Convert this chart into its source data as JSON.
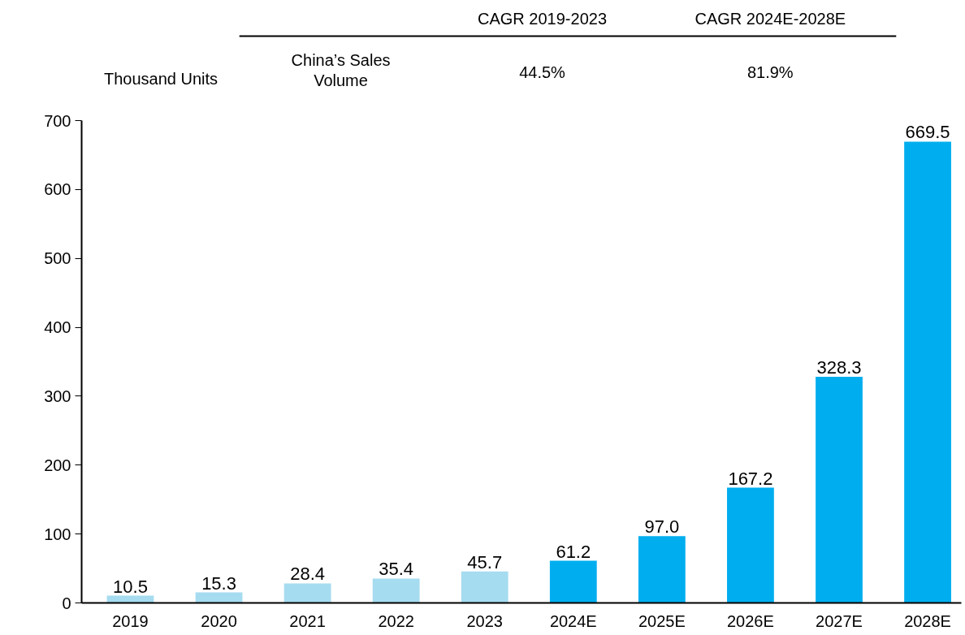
{
  "chart_data": {
    "type": "bar",
    "ylabel": "Thousand Units",
    "categories": [
      "2019",
      "2020",
      "2021",
      "2022",
      "2023",
      "2024E",
      "2025E",
      "2026E",
      "2027E",
      "2028E"
    ],
    "values": [
      10.5,
      15.3,
      28.4,
      35.4,
      45.7,
      61.2,
      97.0,
      167.2,
      328.3,
      669.5
    ],
    "colors": [
      "#a6dcf0",
      "#a6dcf0",
      "#a6dcf0",
      "#a6dcf0",
      "#a6dcf0",
      "#00aeef",
      "#00aeef",
      "#00aeef",
      "#00aeef",
      "#00aeef"
    ],
    "value_labels": [
      "10.5",
      "15.3",
      "28.4",
      "35.4",
      "45.7",
      "61.2",
      "97.0",
      "167.2",
      "328.3",
      "669.5"
    ],
    "ylim": [
      0,
      700
    ],
    "yticks": [
      0,
      100,
      200,
      300,
      400,
      500,
      600,
      700
    ],
    "grid": false,
    "annotations": [
      "CAGR 2019-2023",
      "CAGR 2024E-2028E",
      "China’s Sales Volume",
      "44.5%",
      "81.9%"
    ]
  }
}
